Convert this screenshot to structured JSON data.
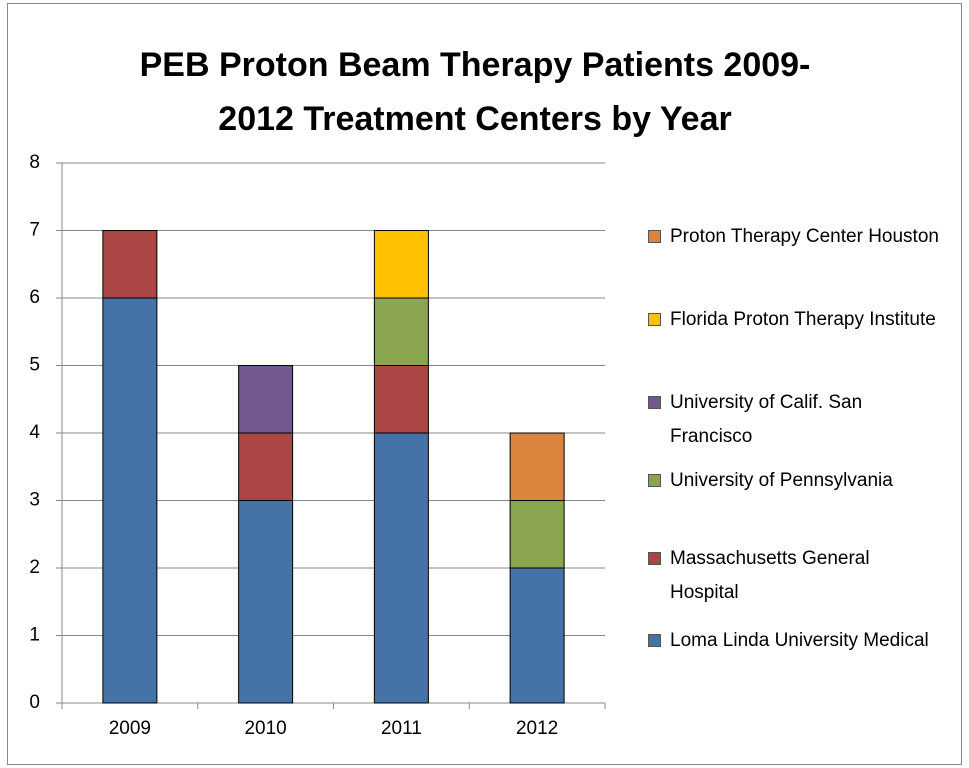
{
  "chart_data": {
    "type": "stacked_bar",
    "title": "PEB Proton Beam Therapy Patients 2009-2012 Treatment Centers by Year",
    "categories": [
      "2009",
      "2010",
      "2011",
      "2012"
    ],
    "series": [
      {
        "name": "Loma Linda University Medical",
        "color": "#4572a7",
        "values": [
          6,
          3,
          4,
          2
        ]
      },
      {
        "name": "Massachusetts General Hospital",
        "color": "#aa4643",
        "values": [
          1,
          1,
          1,
          0
        ]
      },
      {
        "name": "University of Pennsylvania",
        "color": "#89a54e",
        "values": [
          0,
          0,
          1,
          1
        ]
      },
      {
        "name": "University of Calif. San Francisco",
        "color": "#71588f",
        "values": [
          0,
          1,
          0,
          0
        ]
      },
      {
        "name": "Florida Proton Therapy Institute",
        "color": "#ffc000",
        "values": [
          0,
          0,
          1,
          0
        ]
      },
      {
        "name": "Proton Therapy Center Houston",
        "color": "#db843d",
        "values": [
          0,
          0,
          0,
          1
        ]
      }
    ],
    "ylim": [
      0,
      8
    ],
    "yticks": [
      0,
      1,
      2,
      3,
      4,
      5,
      6,
      7,
      8
    ],
    "grid": true,
    "legend": "right"
  }
}
